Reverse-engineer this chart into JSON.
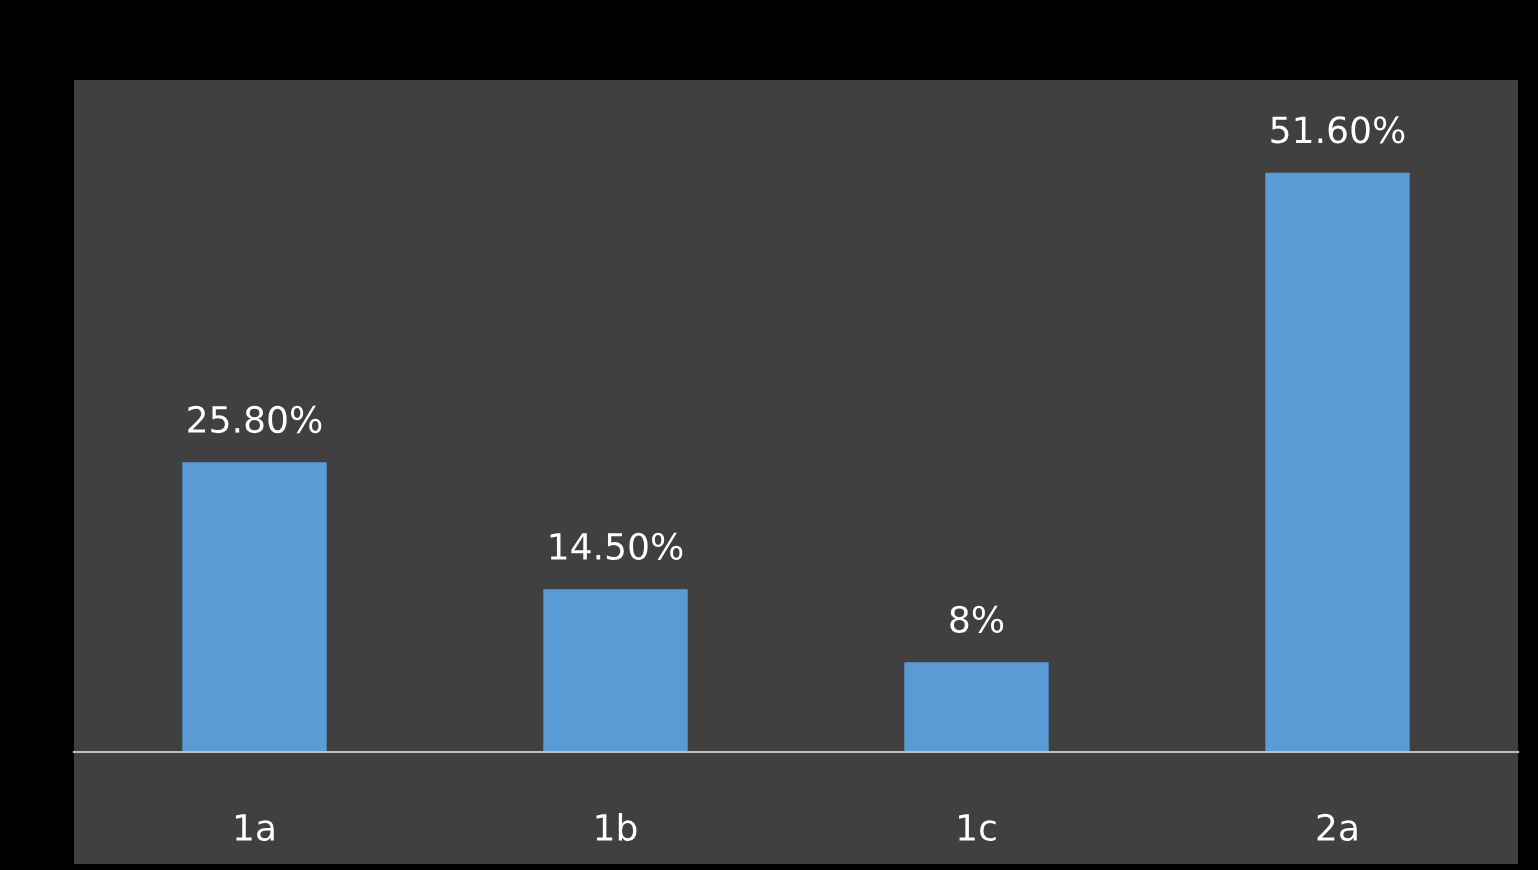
{
  "chart_data": {
    "type": "bar",
    "categories": [
      "1a",
      "1b",
      "1c",
      "2a"
    ],
    "values": [
      25.8,
      14.5,
      8,
      51.6
    ],
    "value_labels": [
      "25.80%",
      "14.50%",
      "8%",
      "51.60%"
    ],
    "color": "#5b9bd5"
  }
}
